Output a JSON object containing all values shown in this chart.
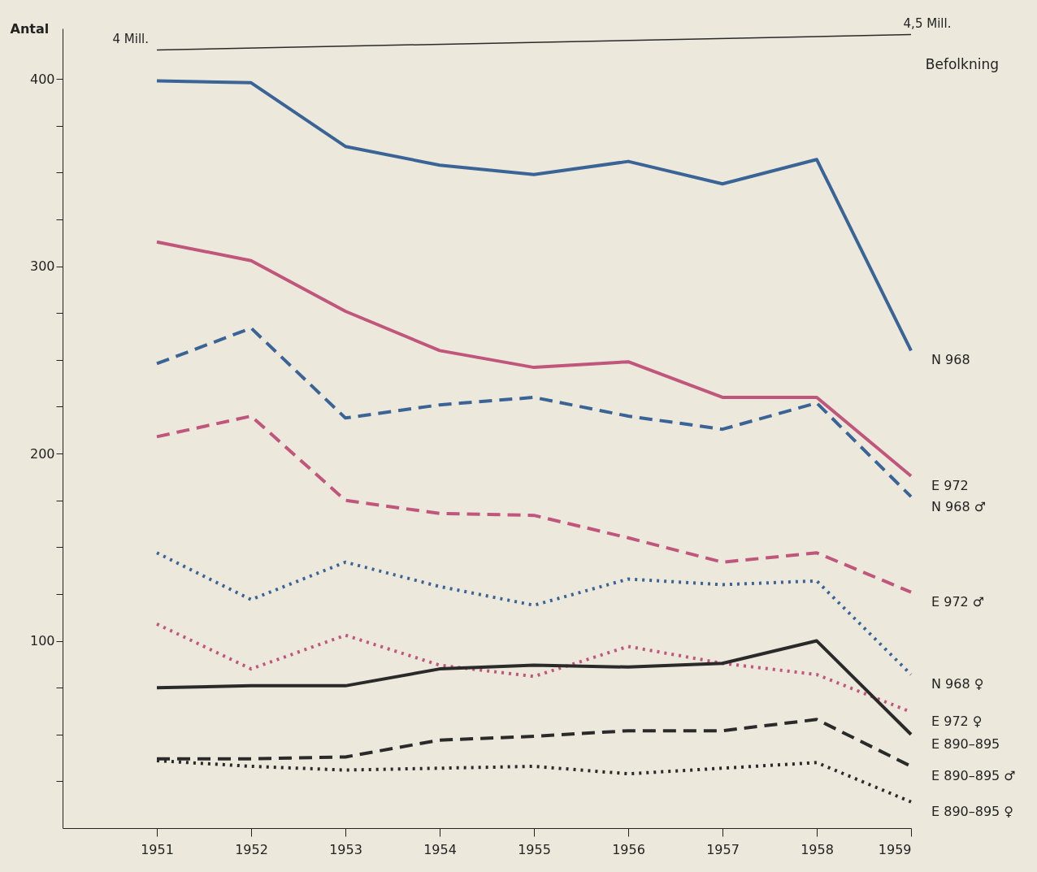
{
  "chart_data": {
    "type": "line",
    "ylabel": "Antal",
    "x": [
      1951,
      1952,
      1953,
      1954,
      1955,
      1956,
      1957,
      1958,
      1959
    ],
    "xlim": [
      1950,
      1959
    ],
    "xticks": [
      1951,
      1952,
      1953,
      1954,
      1955,
      1956,
      1957,
      1958,
      1959
    ],
    "ylim": [
      0,
      427
    ],
    "yticks": [
      {
        "value": 25,
        "label": null
      },
      {
        "value": 50,
        "label": null
      },
      {
        "value": 75,
        "label": null
      },
      100,
      {
        "value": 125,
        "label": null
      },
      {
        "value": 150,
        "label": null
      },
      {
        "value": 175,
        "label": null
      },
      200,
      {
        "value": 225,
        "label": null
      },
      {
        "value": 250,
        "label": null
      },
      {
        "value": 275,
        "label": null
      },
      300,
      {
        "value": 325,
        "label": null
      },
      {
        "value": 350,
        "label": null
      },
      {
        "value": 375,
        "label": null
      },
      400
    ],
    "y2lim": [
      -21.2,
      4.7
    ],
    "grid": false,
    "legend": false,
    "annotations": [
      "Befolkning"
    ],
    "series": [
      {
        "name": "N 968",
        "color": "#3a6496",
        "line_style": "solid",
        "values": [
          399,
          398,
          364,
          354,
          349,
          356,
          344,
          357,
          255
        ]
      },
      {
        "name": "E 972",
        "color": "#c0567c",
        "line_style": "solid",
        "values": [
          313,
          303,
          276,
          255,
          246,
          249,
          230,
          230,
          188
        ]
      },
      {
        "name": "N 968 ♂",
        "color": "#3a6496",
        "line_style": "dashed",
        "values": [
          248,
          267,
          219,
          226,
          230,
          220,
          213,
          227,
          177
        ]
      },
      {
        "name": "E 972 ♂",
        "color": "#c0567c",
        "line_style": "dashed",
        "values": [
          209,
          220,
          175,
          168,
          167,
          155,
          142,
          147,
          126
        ]
      },
      {
        "name": "N 968 ♀",
        "color": "#3a6496",
        "line_style": "dotted",
        "values": [
          147,
          122,
          142,
          129,
          119,
          133,
          130,
          132,
          82
        ]
      },
      {
        "name": "E 972 ♀",
        "color": "#c0567c",
        "line_style": "dotted",
        "values": [
          109,
          85,
          103,
          87,
          81,
          97,
          88,
          82,
          62
        ]
      },
      {
        "name": "E 890–895",
        "color": "#2a2a2a",
        "line_style": "solid",
        "values": [
          75,
          76,
          76,
          85,
          87,
          86,
          88,
          100,
          50
        ]
      },
      {
        "name": "E 890–895 ♂",
        "color": "#2a2a2a",
        "line_style": "dashed",
        "values": [
          37,
          37,
          38,
          47,
          49,
          52,
          52,
          58,
          33
        ]
      },
      {
        "name": "E 890–895 ♀",
        "color": "#2a2a2a",
        "line_style": "dotted",
        "values": [
          36,
          33,
          31,
          32,
          33,
          29,
          32,
          35,
          14
        ]
      },
      {
        "axis": "y2",
        "color": "#2a2a2a",
        "line_style": "solid",
        "x": [
          1951,
          1959
        ],
        "values": [
          4,
          4.5
        ],
        "value_labels": [
          "4 Mill.",
          "4,5 Mill."
        ]
      }
    ]
  }
}
